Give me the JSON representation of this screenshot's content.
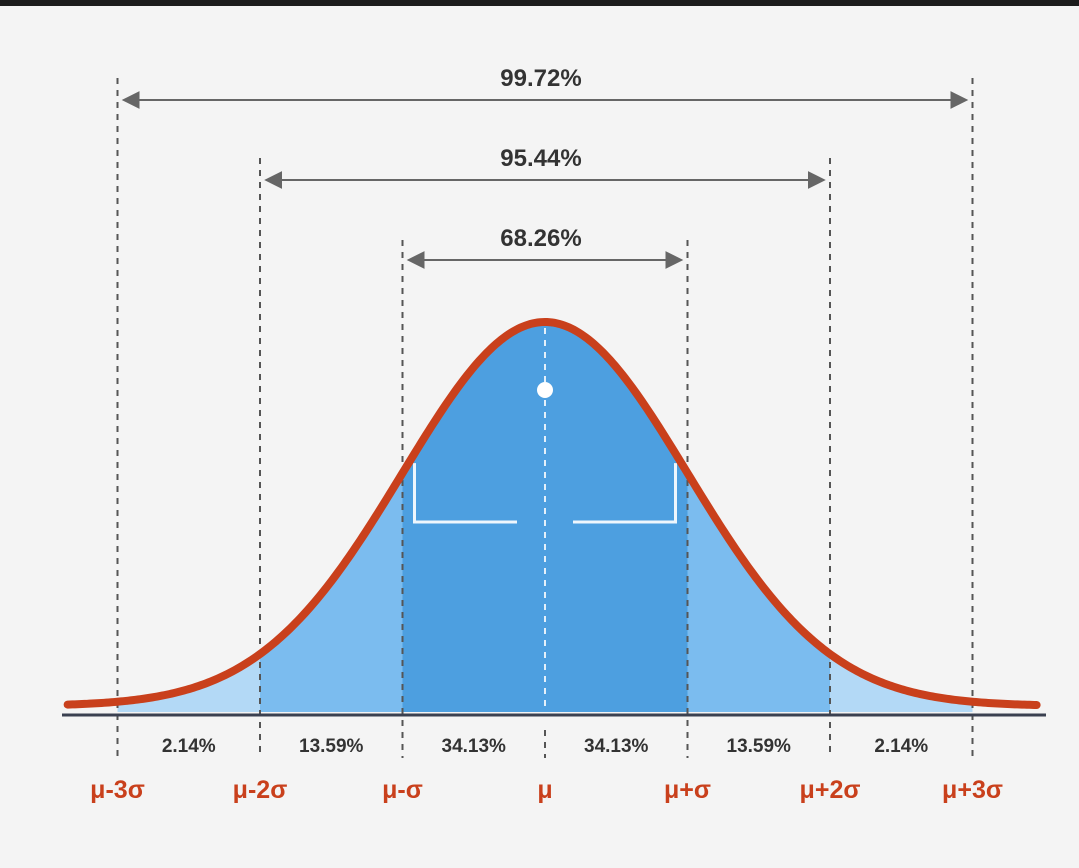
{
  "chart_data": {
    "type": "area",
    "title": "",
    "xlabel": "",
    "ylabel": "",
    "x_range": [
      -3.05,
      3.4
    ],
    "curve": "normal-density",
    "boundaries": [
      {
        "x": -3,
        "label": "μ-3σ"
      },
      {
        "x": -2,
        "label": "μ-2σ"
      },
      {
        "x": -1,
        "label": "μ-σ"
      },
      {
        "x": 0,
        "label": "μ"
      },
      {
        "x": 1,
        "label": "μ+σ"
      },
      {
        "x": 2,
        "label": "μ+2σ"
      },
      {
        "x": 3,
        "label": "μ+3σ"
      }
    ],
    "segments": [
      {
        "from": -3,
        "to": -2,
        "percent_label": "2.14%",
        "value": 2.14
      },
      {
        "from": -2,
        "to": -1,
        "percent_label": "13.59%",
        "value": 13.59
      },
      {
        "from": -1,
        "to": 0,
        "percent_label": "34.13%",
        "value": 34.13
      },
      {
        "from": 0,
        "to": 1,
        "percent_label": "34.13%",
        "value": 34.13
      },
      {
        "from": 1,
        "to": 2,
        "percent_label": "13.59%",
        "value": 13.59
      },
      {
        "from": 2,
        "to": 3,
        "percent_label": "2.14%",
        "value": 2.14
      }
    ],
    "ranges": [
      {
        "from": -1,
        "to": 1,
        "label": "68.26%",
        "value": 68.26
      },
      {
        "from": -2,
        "to": 2,
        "label": "95.44%",
        "value": 95.44
      },
      {
        "from": -3,
        "to": 3,
        "label": "99.72%",
        "value": 99.72
      }
    ],
    "colors": {
      "curve": "#c9401c",
      "inner_fill": "#4d9fe0",
      "middle_fill": "#7bbcef",
      "outer_fill": "#b3d9f6",
      "label_red": "#c9401c",
      "text": "#333333",
      "guide": "#555555",
      "axis": "#3a4050"
    }
  }
}
